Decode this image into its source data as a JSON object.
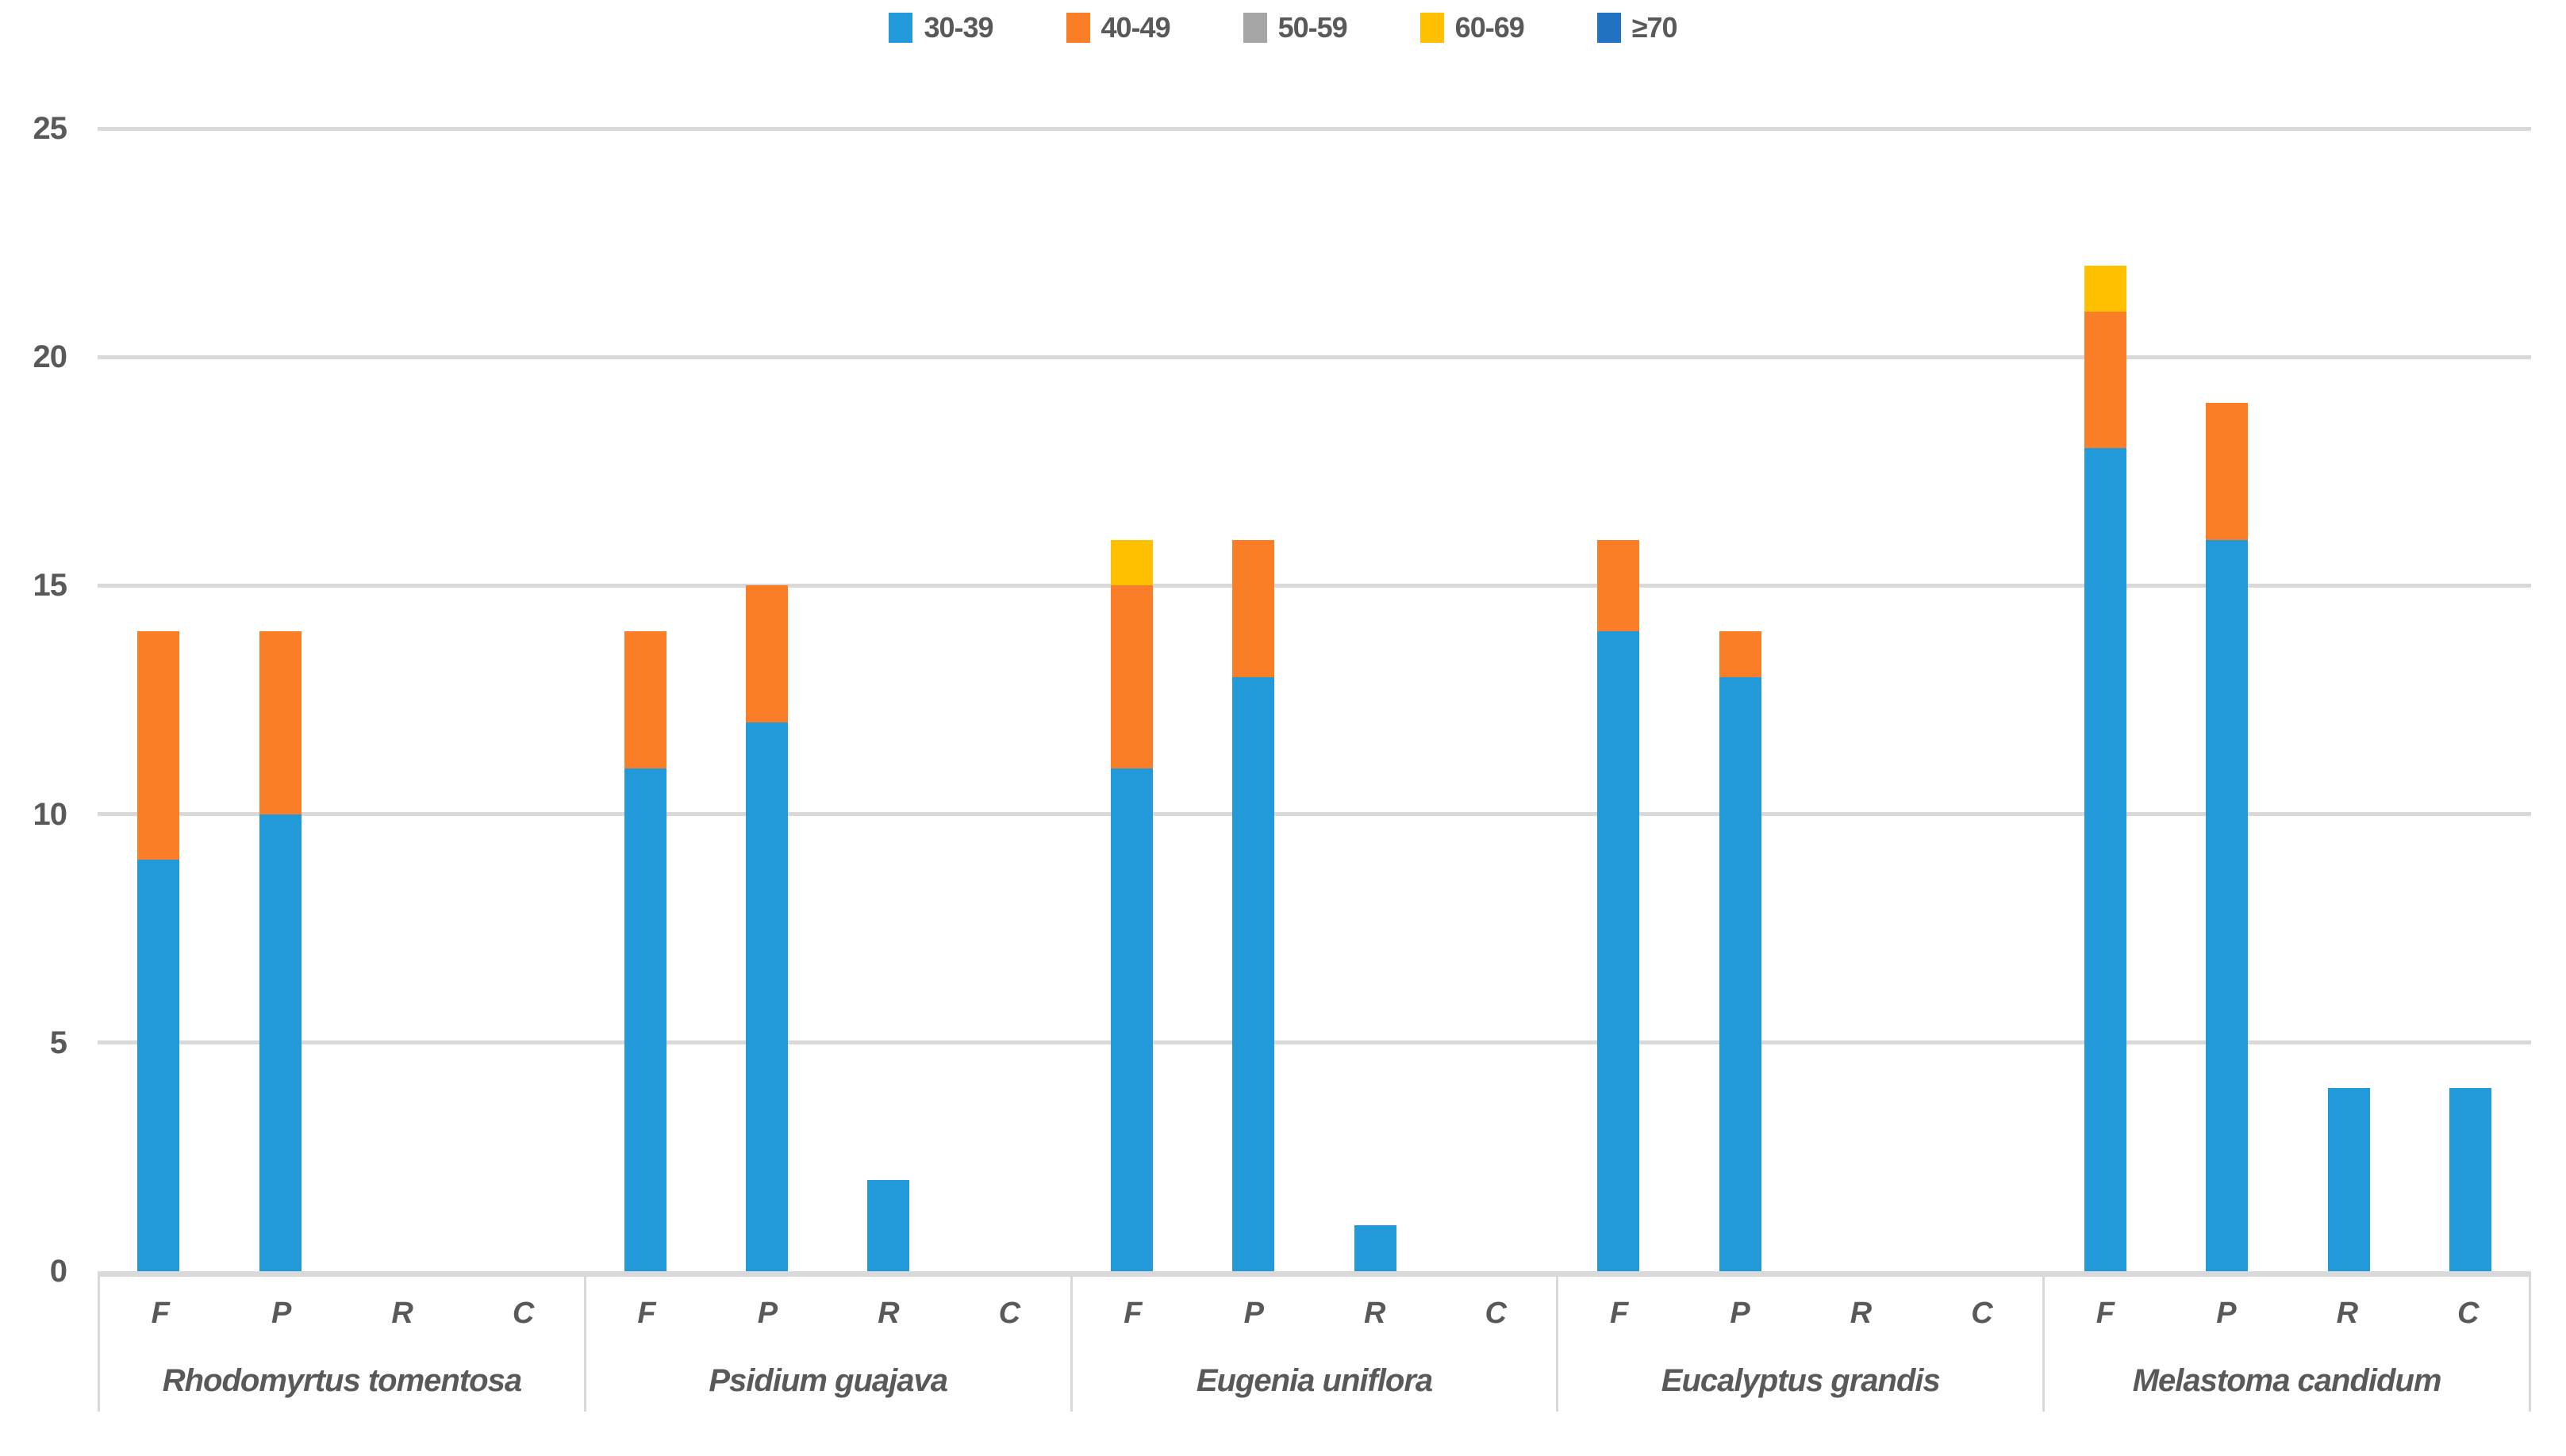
{
  "chart_data": {
    "type": "bar",
    "stacked": true,
    "title": "",
    "xlabel": "",
    "ylabel": "",
    "ylim": [
      0,
      25
    ],
    "yticks": [
      0,
      5,
      10,
      15,
      20,
      25
    ],
    "grid": "horizontal",
    "legend_position": "top-center",
    "gridline_color": "#D9D9D9",
    "text_color": "#595959",
    "series": [
      "30-39",
      "40-49",
      "50-59",
      "60-69",
      "≥70"
    ],
    "colors": {
      "30-39": "#2299D8",
      "40-49": "#FA7D28",
      "50-59": "#A5A5A5",
      "60-69": "#FFC000",
      "≥70": "#2272C3"
    },
    "categories_per_group": [
      "F",
      "P",
      "R",
      "C"
    ],
    "groups": [
      {
        "species": "Rhodomyrtus tomentosa",
        "bars": {
          "F": [
            9,
            5,
            0,
            0,
            0
          ],
          "P": [
            10,
            4,
            0,
            0,
            0
          ],
          "R": [
            0,
            0,
            0,
            0,
            0
          ],
          "C": [
            0,
            0,
            0,
            0,
            0
          ]
        }
      },
      {
        "species": "Psidium guajava",
        "bars": {
          "F": [
            11,
            3,
            0,
            0,
            0
          ],
          "P": [
            12,
            3,
            0,
            0,
            0
          ],
          "R": [
            2,
            0,
            0,
            0,
            0
          ],
          "C": [
            0,
            0,
            0,
            0,
            0
          ]
        }
      },
      {
        "species": "Eugenia uniflora",
        "bars": {
          "F": [
            11,
            4,
            0,
            1,
            0
          ],
          "P": [
            13,
            3,
            0,
            0,
            0
          ],
          "R": [
            1,
            0,
            0,
            0,
            0
          ],
          "C": [
            0,
            0,
            0,
            0,
            0
          ]
        }
      },
      {
        "species": "Eucalyptus grandis",
        "bars": {
          "F": [
            14,
            2,
            0,
            0,
            0
          ],
          "P": [
            13,
            1,
            0,
            0,
            0
          ],
          "R": [
            0,
            0,
            0,
            0,
            0
          ],
          "C": [
            0,
            0,
            0,
            0,
            0
          ]
        }
      },
      {
        "species": "Melastoma candidum",
        "bars": {
          "F": [
            18,
            3,
            0,
            1,
            0
          ],
          "P": [
            16,
            3,
            0,
            0,
            0
          ],
          "R": [
            4,
            0,
            0,
            0,
            0
          ],
          "C": [
            4,
            0,
            0,
            0,
            0
          ]
        }
      }
    ]
  },
  "legend": {
    "items": [
      {
        "label": "30-39",
        "color": "#2299D8"
      },
      {
        "label": "40-49",
        "color": "#FA7D28"
      },
      {
        "label": "50-59",
        "color": "#A5A5A5"
      },
      {
        "label": "60-69",
        "color": "#FFC000"
      },
      {
        "label": "≥70",
        "color": "#2272C3"
      }
    ]
  },
  "y_axis": {
    "tick_labels": [
      "0",
      "5",
      "10",
      "15",
      "20",
      "25"
    ]
  }
}
